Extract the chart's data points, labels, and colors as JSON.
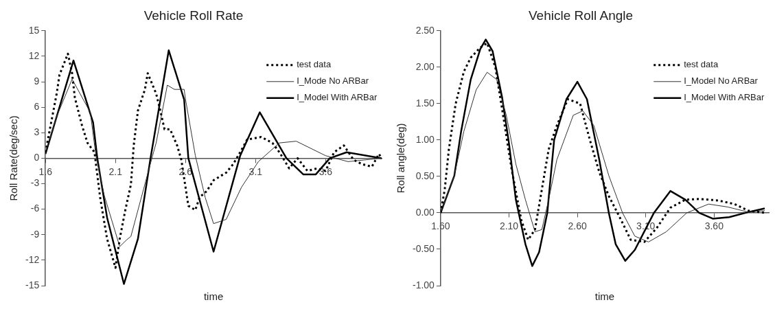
{
  "chart_data": [
    {
      "type": "line",
      "title": "Vehicle Roll Rate",
      "xlabel": "time",
      "ylabel": "Roll Rate(deg/sec)",
      "xlim": [
        1.6,
        4.0
      ],
      "xticks": [
        1.6,
        2.1,
        2.6,
        3.1,
        3.6
      ],
      "ylim": [
        -15,
        15
      ],
      "yticks": [
        -15,
        -12,
        -9,
        -6,
        -3,
        0,
        3,
        6,
        9,
        12,
        15
      ],
      "legend": "top right",
      "marker": "none",
      "series": [
        {
          "name": "test data",
          "color": "#000000",
          "line_style": "dotted",
          "x": [
            1.6,
            1.68,
            1.7,
            1.76,
            1.79,
            1.81,
            1.86,
            1.9,
            1.95,
            1.99,
            2.04,
            2.1,
            2.13,
            2.17,
            2.21,
            2.23,
            2.26,
            2.31,
            2.33,
            2.39,
            2.42,
            2.45,
            2.49,
            2.54,
            2.57,
            2.62,
            2.67,
            2.7,
            2.75,
            2.8,
            2.89,
            2.94,
            2.99,
            3.04,
            3.14,
            3.22,
            3.27,
            3.34,
            3.4,
            3.47,
            3.54,
            3.6,
            3.66,
            3.73,
            3.8,
            3.86,
            3.93,
            3.98,
            4.0
          ],
          "values": [
            0.7,
            7.6,
            9.8,
            12.3,
            10,
            7.1,
            3.9,
            1.8,
            0.7,
            -4.6,
            -9.5,
            -12.9,
            -9.5,
            -6.1,
            -3.1,
            1.5,
            5.6,
            8.1,
            10,
            7.6,
            5.6,
            3.4,
            3.4,
            1.5,
            -0.2,
            -5.6,
            -6.1,
            -4.6,
            -3.9,
            -2.6,
            -1.7,
            -0.7,
            0.7,
            2.2,
            2.5,
            1.8,
            0.7,
            -1.2,
            0,
            -1.5,
            -1.2,
            -1.5,
            0.7,
            1.5,
            -0.2,
            -0.7,
            -1.0,
            0.5,
            0
          ]
        },
        {
          "name": "I_Mode No ARBar",
          "color": "#333333",
          "line_style": "solid",
          "x": [
            1.6,
            1.68,
            1.79,
            1.84,
            1.92,
            1.96,
            2.02,
            2.13,
            2.18,
            2.21,
            2.34,
            2.39,
            2.47,
            2.52,
            2.59,
            2.6,
            2.67,
            2.74,
            2.8,
            2.89,
            3.0,
            3.12,
            3.27,
            3.39,
            3.6,
            3.76,
            4.0
          ],
          "values": [
            0.7,
            4.9,
            9.3,
            7.8,
            5.4,
            0.3,
            -4.4,
            -10.4,
            -9.6,
            -9.2,
            -1.2,
            1.8,
            8.6,
            8.1,
            8.1,
            6.9,
            0.3,
            -4.6,
            -7.7,
            -7.2,
            -3.4,
            -0.4,
            1.8,
            2.0,
            0.3,
            -0.4,
            0
          ]
        },
        {
          "name": "I_Model With ARBar",
          "color": "#000000",
          "line_style": "solid",
          "x": [
            1.6,
            1.8,
            1.94,
            1.97,
            2.04,
            2.16,
            2.26,
            2.35,
            2.48,
            2.59,
            2.62,
            2.8,
            2.99,
            3.13,
            3.32,
            3.44,
            3.53,
            3.63,
            3.75,
            4.0
          ],
          "values": [
            0.5,
            11.5,
            4.2,
            0,
            -7,
            -14.8,
            -9.5,
            0,
            12.7,
            6.9,
            0,
            -11,
            0.3,
            5.4,
            0,
            -1.9,
            -1.9,
            0,
            0.7,
            0
          ]
        }
      ]
    },
    {
      "type": "line",
      "title": "Vehicle Roll Angle",
      "xlabel": "time",
      "ylabel": "Roll angle(deg)",
      "xlim": [
        1.6,
        4.0
      ],
      "xticks": [
        {
          "value": 1.6,
          "label": "1.60"
        },
        {
          "value": 2.1,
          "label": "2.10"
        },
        {
          "value": 2.6,
          "label": "2.60"
        },
        {
          "value": 3.1,
          "label": "3.10"
        },
        {
          "value": 3.6,
          "label": "3.60"
        }
      ],
      "ylim": [
        -1,
        2.5
      ],
      "yticks": [
        {
          "value": -1,
          "label": "-1.00"
        },
        {
          "value": -0.5,
          "label": "-0.50"
        },
        {
          "value": 0,
          "label": "0.00"
        },
        {
          "value": 0.5,
          "label": "0.50"
        },
        {
          "value": 1,
          "label": "1.00"
        },
        {
          "value": 1.5,
          "label": "1.50"
        },
        {
          "value": 2,
          "label": "2.00"
        },
        {
          "value": 2.5,
          "label": "2.50"
        }
      ],
      "legend": "top right",
      "marker": "none",
      "series": [
        {
          "name": "test data",
          "color": "#000000",
          "line_style": "dotted",
          "x": [
            1.6,
            1.63,
            1.66,
            1.71,
            1.77,
            1.82,
            1.89,
            1.94,
            2.0,
            2.05,
            2.12,
            2.19,
            2.24,
            2.29,
            2.34,
            2.39,
            2.45,
            2.53,
            2.62,
            2.69,
            2.76,
            2.83,
            2.92,
            2.99,
            3.09,
            3.18,
            3.28,
            3.39,
            3.49,
            3.63,
            3.75,
            3.85,
            3.97
          ],
          "values": [
            0,
            0.32,
            0.87,
            1.5,
            1.94,
            2.13,
            2.27,
            2.33,
            2.0,
            1.42,
            0.59,
            -0.1,
            -0.37,
            -0.23,
            0.32,
            0.87,
            1.2,
            1.56,
            1.5,
            1.01,
            0.56,
            0.23,
            -0.1,
            -0.37,
            -0.4,
            -0.21,
            0.07,
            0.18,
            0.19,
            0.17,
            0.12,
            0.03,
            0
          ]
        },
        {
          "name": "I_Model No ARBar",
          "color": "#333333",
          "line_style": "solid",
          "x": [
            1.6,
            1.7,
            1.77,
            1.86,
            1.94,
            2.01,
            2.08,
            2.15,
            2.22,
            2.29,
            2.34,
            2.39,
            2.45,
            2.57,
            2.64,
            2.72,
            2.83,
            2.93,
            3.02,
            3.12,
            3.25,
            3.4,
            3.56,
            3.7,
            3.85,
            3.97
          ],
          "values": [
            0,
            0.51,
            1.12,
            1.69,
            1.93,
            1.83,
            1.34,
            0.67,
            0.18,
            -0.26,
            -0.23,
            0.18,
            0.73,
            1.34,
            1.4,
            1.2,
            0.51,
            0,
            -0.32,
            -0.4,
            -0.26,
            0,
            0.12,
            0.08,
            0.01,
            0.03
          ]
        },
        {
          "name": "I_Model With ARBar",
          "color": "#000000",
          "line_style": "solid",
          "x": [
            1.6,
            1.7,
            1.75,
            1.82,
            1.89,
            1.93,
            1.98,
            2.05,
            2.1,
            2.15,
            2.22,
            2.27,
            2.32,
            2.38,
            2.43,
            2.52,
            2.6,
            2.67,
            2.76,
            2.83,
            2.88,
            2.95,
            3.02,
            3.16,
            3.28,
            3.39,
            3.49,
            3.59,
            3.71,
            3.85,
            3.97
          ],
          "values": [
            0,
            0.51,
            1.12,
            1.83,
            2.25,
            2.38,
            2.22,
            1.58,
            0.95,
            0.18,
            -0.43,
            -0.73,
            -0.54,
            0,
            1.0,
            1.56,
            1.8,
            1.56,
            0.73,
            0,
            -0.43,
            -0.66,
            -0.51,
            0,
            0.3,
            0.18,
            0,
            -0.08,
            -0.06,
            0.01,
            0.06
          ]
        }
      ]
    }
  ]
}
